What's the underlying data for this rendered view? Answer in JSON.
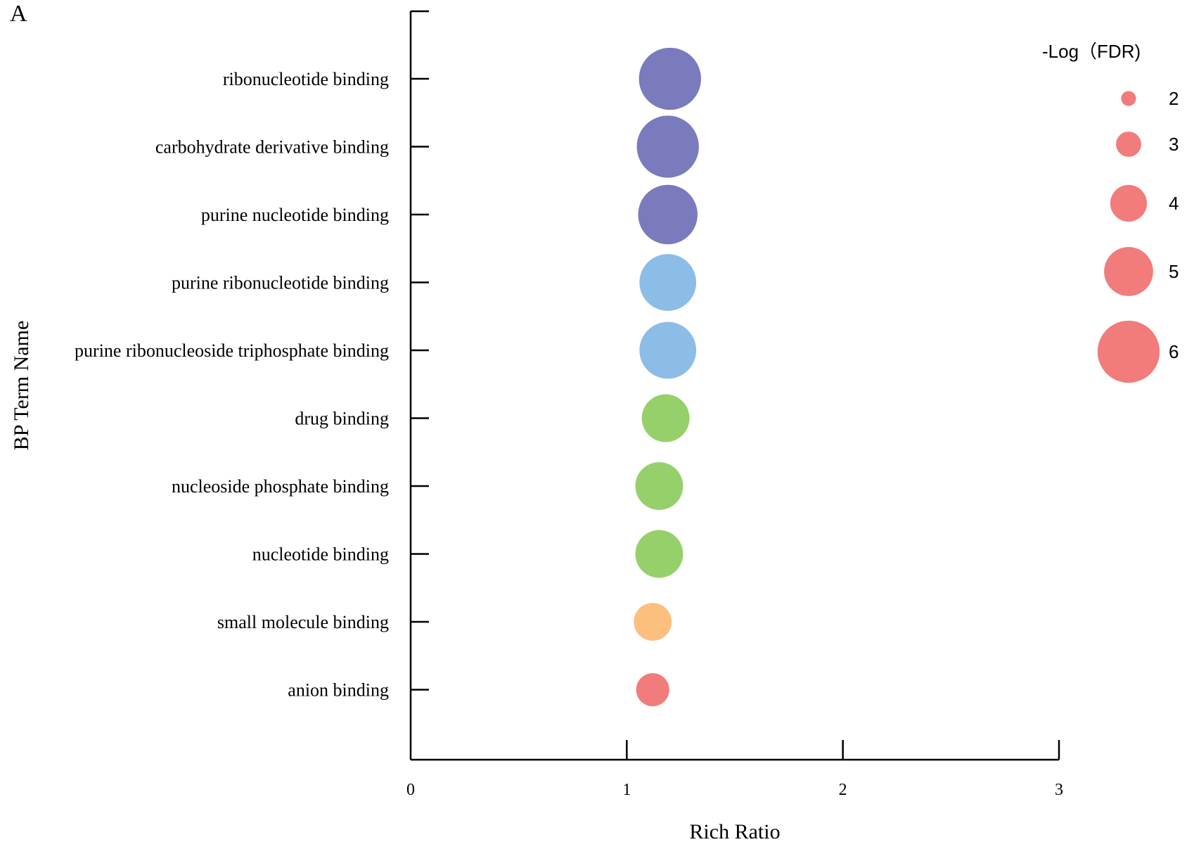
{
  "panel_label": "A",
  "chart_data": {
    "type": "scatter",
    "subtype": "bubble",
    "xlabel": "Rich Ratio",
    "ylabel": "BP Term Name",
    "xlim": [
      0,
      3
    ],
    "x_ticks": [
      "0",
      "1",
      "2",
      "3"
    ],
    "grid": false,
    "categories": [
      "ribonucleotide binding",
      "carbohydrate derivative binding",
      "purine nucleotide binding",
      "purine ribonucleotide binding",
      "purine ribonucleoside triphosphate binding",
      "drug binding",
      "nucleoside phosphate binding",
      "nucleotide binding",
      "small molecule binding",
      "anion binding"
    ],
    "points": [
      {
        "term": "ribonucleotide binding",
        "rich_ratio": 1.2,
        "neg_log_fdr": 6.0,
        "color": "#7a7bbd"
      },
      {
        "term": "carbohydrate derivative binding",
        "rich_ratio": 1.19,
        "neg_log_fdr": 6.0,
        "color": "#7a7bbd"
      },
      {
        "term": "purine nucleotide binding",
        "rich_ratio": 1.19,
        "neg_log_fdr": 5.8,
        "color": "#7a7bbd"
      },
      {
        "term": "purine ribonucleotide binding",
        "rich_ratio": 1.19,
        "neg_log_fdr": 5.6,
        "color": "#8cbde6"
      },
      {
        "term": "purine ribonucleoside triphosphate binding",
        "rich_ratio": 1.19,
        "neg_log_fdr": 5.6,
        "color": "#8cbde6"
      },
      {
        "term": "drug binding",
        "rich_ratio": 1.18,
        "neg_log_fdr": 4.9,
        "color": "#96d06a"
      },
      {
        "term": "nucleoside phosphate binding",
        "rich_ratio": 1.15,
        "neg_log_fdr": 4.9,
        "color": "#96d06a"
      },
      {
        "term": "nucleotide binding",
        "rich_ratio": 1.15,
        "neg_log_fdr": 4.9,
        "color": "#96d06a"
      },
      {
        "term": "small molecule binding",
        "rich_ratio": 1.12,
        "neg_log_fdr": 4.1,
        "color": "#fdbf7e"
      },
      {
        "term": "anion binding",
        "rich_ratio": 1.12,
        "neg_log_fdr": 3.7,
        "color": "#f27b7b"
      }
    ],
    "legend": {
      "title": "-Log（FDR)",
      "placement": "top-right",
      "color": "#f27b7b",
      "entries": [
        {
          "label": "2",
          "value": 2
        },
        {
          "label": "3",
          "value": 3
        },
        {
          "label": "4",
          "value": 4
        },
        {
          "label": "5",
          "value": 5
        },
        {
          "label": "6",
          "value": 6
        }
      ]
    }
  }
}
